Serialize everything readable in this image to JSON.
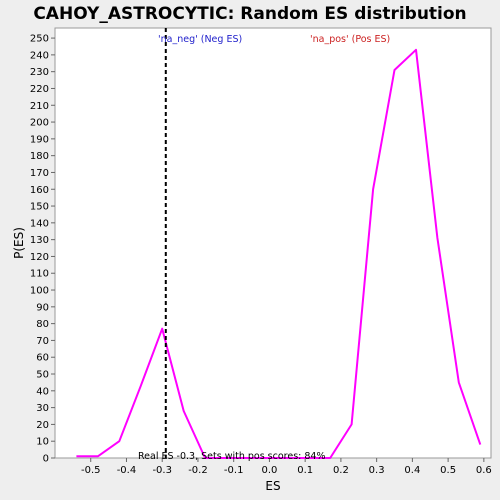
{
  "chart_data": {
    "type": "line",
    "title": "CAHOY_ASTROCYTIC: Random ES distribution",
    "xlabel": "ES",
    "ylabel": "P(ES)",
    "xlim": [
      -0.6,
      0.62
    ],
    "ylim": [
      0,
      256
    ],
    "xticks": [
      -0.5,
      -0.4,
      -0.3,
      -0.2,
      -0.1,
      0.0,
      0.1,
      0.2,
      0.3,
      0.4,
      0.5,
      0.6
    ],
    "xtick_labels": [
      "-0.5",
      "-0.4",
      "-0.3",
      "-0.2",
      "-0.1",
      "0.0",
      "0.1",
      "0.2",
      "0.3",
      "0.4",
      "0.5",
      "0.6"
    ],
    "yticks": [
      0,
      10,
      20,
      30,
      40,
      50,
      60,
      70,
      80,
      90,
      100,
      110,
      120,
      130,
      140,
      150,
      160,
      170,
      180,
      190,
      200,
      210,
      220,
      230,
      240,
      250
    ],
    "ytick_labels": [
      "0",
      "10",
      "20",
      "30",
      "40",
      "50",
      "60",
      "70",
      "80",
      "90",
      "100",
      "110",
      "120",
      "130",
      "140",
      "150",
      "160",
      "170",
      "180",
      "190",
      "200",
      "210",
      "220",
      "230",
      "240",
      "250"
    ],
    "series": [
      {
        "color": "#ff00ff",
        "x": [
          -0.54,
          -0.48,
          -0.42,
          -0.36,
          -0.3,
          -0.24,
          -0.18,
          -0.12,
          -0.06,
          0.0,
          0.06,
          0.12,
          0.17,
          0.23,
          0.29,
          0.35,
          0.41,
          0.47,
          0.53,
          0.59
        ],
        "y": [
          1,
          1,
          10,
          43,
          77,
          28,
          0,
          0,
          0,
          0,
          0,
          0,
          0,
          20,
          160,
          231,
          243,
          131,
          45,
          8
        ]
      }
    ],
    "reference_line": {
      "x": -0.29,
      "style": "dashed",
      "color": "#000000"
    },
    "annotations": {
      "neg": "'na_neg' (Neg ES)",
      "pos": "'na_pos' (Pos ES)",
      "bottom": "Real ES -0.3,   Sets with pos scores: 84%"
    },
    "colors": {
      "background": "#eeeeee",
      "plot_background": "#ffffff",
      "series": "#ff00ff",
      "neg_label": "#2222cc",
      "pos_label": "#cc2222"
    }
  }
}
